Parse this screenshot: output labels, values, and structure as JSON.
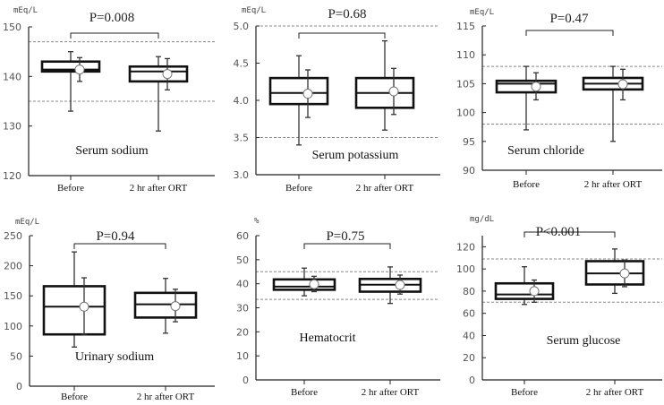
{
  "chart_data": [
    {
      "type": "box",
      "title": "Serum sodium",
      "ylabel": "mEq/L",
      "ylim": [
        120,
        150
      ],
      "yticks": [
        120,
        130,
        140,
        150
      ],
      "tick_decimals": 0,
      "reference_lines": [
        135,
        147
      ],
      "p_value": "P=0.008",
      "categories": [
        "Before",
        "2 hr after ORT"
      ],
      "series": [
        {
          "name": "Before",
          "min": 133,
          "q1": 141,
          "median": 141.4,
          "q3": 143,
          "max": 145,
          "mean": 141.4,
          "sd_low": 139,
          "sd_high": 143.8
        },
        {
          "name": "2 hr after ORT",
          "min": 129,
          "q1": 139,
          "median": 141,
          "q3": 142,
          "max": 144,
          "mean": 140.5,
          "sd_low": 137.3,
          "sd_high": 143.6
        }
      ]
    },
    {
      "type": "box",
      "title": "Serum potassium",
      "ylabel": "mEq/L",
      "ylim": [
        3.0,
        5.0
      ],
      "yticks": [
        3.0,
        3.5,
        4.0,
        4.5,
        5.0
      ],
      "tick_decimals": 1,
      "reference_lines": [
        3.5,
        5.0
      ],
      "p_value": "P=0.68",
      "categories": [
        "Before",
        "2 hr after ORT"
      ],
      "series": [
        {
          "name": "Before",
          "min": 3.4,
          "q1": 3.95,
          "median": 4.1,
          "q3": 4.3,
          "max": 4.6,
          "mean": 4.09,
          "sd_low": 3.77,
          "sd_high": 4.41
        },
        {
          "name": "2 hr after ORT",
          "min": 3.6,
          "q1": 3.9,
          "median": 4.1,
          "q3": 4.3,
          "max": 4.8,
          "mean": 4.12,
          "sd_low": 3.81,
          "sd_high": 4.43
        }
      ]
    },
    {
      "type": "box",
      "title": "Serum chloride",
      "ylabel": "mEq/L",
      "ylim": [
        90,
        115
      ],
      "yticks": [
        90,
        95,
        100,
        105,
        110,
        115
      ],
      "tick_decimals": 0,
      "reference_lines": [
        98,
        108
      ],
      "p_value": "P=0.47",
      "categories": [
        "Before",
        "2 hr after ORT"
      ],
      "series": [
        {
          "name": "Before",
          "min": 97,
          "q1": 103.5,
          "median": 105,
          "q3": 105.5,
          "max": 108,
          "mean": 104.5,
          "sd_low": 102.2,
          "sd_high": 106.9
        },
        {
          "name": "2 hr after ORT",
          "min": 95,
          "q1": 104,
          "median": 105,
          "q3": 106,
          "max": 108,
          "mean": 104.9,
          "sd_low": 102.2,
          "sd_high": 107.5
        }
      ]
    },
    {
      "type": "box",
      "title": "Urinary sodium",
      "ylabel": "mEq/L",
      "ylim": [
        0,
        250
      ],
      "yticks": [
        0,
        50,
        100,
        150,
        200,
        250
      ],
      "tick_decimals": 0,
      "reference_lines": [],
      "p_value": "P=0.94",
      "categories": [
        "Before",
        "2 hr after ORT"
      ],
      "series": [
        {
          "name": "Before",
          "min": 65,
          "q1": 86,
          "median": 132,
          "q3": 166,
          "max": 223,
          "mean": 132,
          "sd_low": 86,
          "sd_high": 180
        },
        {
          "name": "2 hr after ORT",
          "min": 88,
          "q1": 114,
          "median": 136,
          "q3": 155,
          "max": 179,
          "mean": 133,
          "sd_low": 107,
          "sd_high": 161
        }
      ]
    },
    {
      "type": "box",
      "title": "Hematocrit",
      "ylabel": "%",
      "ylim": [
        0,
        60
      ],
      "yticks": [
        0,
        10,
        20,
        30,
        40,
        50,
        60
      ],
      "tick_decimals": 0,
      "reference_lines": [
        33.5,
        45
      ],
      "p_value": "P=0.75",
      "categories": [
        "Before",
        "2 hr after ORT"
      ],
      "series": [
        {
          "name": "Before",
          "min": 35,
          "q1": 37.5,
          "median": 38.8,
          "q3": 41.8,
          "max": 46.5,
          "mean": 39.8,
          "sd_low": 36.7,
          "sd_high": 43.1
        },
        {
          "name": "2 hr after ORT",
          "min": 31.8,
          "q1": 36.7,
          "median": 39.6,
          "q3": 42,
          "max": 47,
          "mean": 39.5,
          "sd_low": 35.7,
          "sd_high": 43.6
        }
      ]
    },
    {
      "type": "box",
      "title": "Serum glucose",
      "ylabel": "mg/dL",
      "ylim": [
        0,
        130
      ],
      "yticks": [
        0,
        20,
        40,
        60,
        80,
        100,
        120
      ],
      "tick_decimals": 0,
      "reference_lines": [
        70,
        109
      ],
      "p_value": "P<0.001",
      "categories": [
        "Before",
        "2 hr after ORT"
      ],
      "series": [
        {
          "name": "Before",
          "min": 68,
          "q1": 73,
          "median": 77,
          "q3": 87,
          "max": 102,
          "mean": 80,
          "sd_low": 70,
          "sd_high": 90
        },
        {
          "name": "2 hr after ORT",
          "min": 78,
          "q1": 86,
          "median": 96,
          "q3": 107,
          "max": 118,
          "mean": 96,
          "sd_low": 84,
          "sd_high": 108
        }
      ]
    }
  ]
}
